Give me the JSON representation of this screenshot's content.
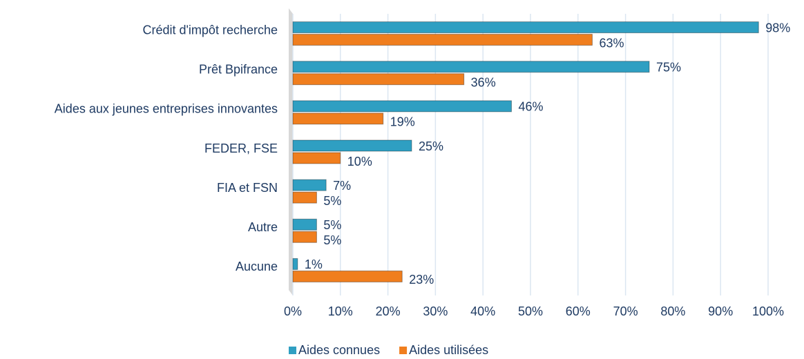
{
  "chart_data": {
    "type": "bar",
    "orientation": "horizontal",
    "categories": [
      "Crédit d'impôt recherche",
      "Prêt Bpifrance",
      "Aides aux jeunes entreprises innovantes",
      "FEDER, FSE",
      "FIA et FSN",
      "Autre",
      "Aucune"
    ],
    "series": [
      {
        "name": "Aides connues",
        "color": "#2f9fc2",
        "values": [
          98,
          75,
          46,
          25,
          7,
          5,
          1
        ],
        "value_labels": [
          "98%",
          "75%",
          "46%",
          "25%",
          "7%",
          "5%",
          "1%"
        ]
      },
      {
        "name": "Aides utilisées",
        "color": "#f07e1e",
        "values": [
          63,
          36,
          19,
          10,
          5,
          5,
          23
        ],
        "value_labels": [
          "63%",
          "36%",
          "19%",
          "10%",
          "5%",
          "5%",
          "23%"
        ]
      }
    ],
    "xlim": [
      0,
      100
    ],
    "xticks": [
      {
        "value": 0,
        "label": "0%"
      },
      {
        "value": 10,
        "label": "10%"
      },
      {
        "value": 20,
        "label": "20%"
      },
      {
        "value": 30,
        "label": "30%"
      },
      {
        "value": 40,
        "label": "40%"
      },
      {
        "value": 50,
        "label": "50%"
      },
      {
        "value": 60,
        "label": "60%"
      },
      {
        "value": 70,
        "label": "70%"
      },
      {
        "value": 80,
        "label": "80%"
      },
      {
        "value": 90,
        "label": "90%"
      },
      {
        "value": 100,
        "label": "100%"
      }
    ],
    "grid": true,
    "legend": "bottom"
  }
}
